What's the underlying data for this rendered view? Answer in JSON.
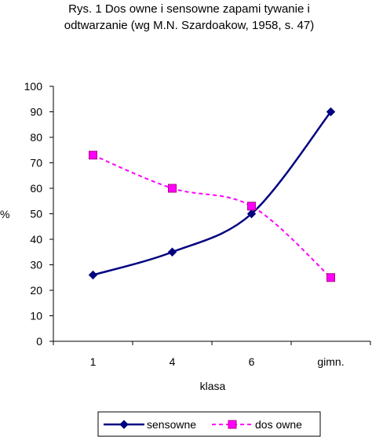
{
  "chart_data": {
    "type": "line",
    "title_lines": [
      "Rys. 1 Dos owne i sensowne zapami tywanie i",
      "odtwarzanie (wg M.N. Szardoakow, 1958, s. 47)"
    ],
    "xlabel": "klasa",
    "ylabel": "%",
    "categories": [
      "1",
      "4",
      "6",
      "gimn."
    ],
    "ylim": [
      0,
      100
    ],
    "yticks": [
      0,
      10,
      20,
      30,
      40,
      50,
      60,
      70,
      80,
      90,
      100
    ],
    "grid": false,
    "legend_position": "bottom",
    "series": [
      {
        "name": "sensowne",
        "values": [
          26,
          35,
          50,
          90
        ],
        "color": "#000080",
        "line_style": "solid",
        "marker": "diamond",
        "smooth": true
      },
      {
        "name": "dos owne",
        "values": [
          73,
          60,
          53,
          25
        ],
        "color": "#ff00ff",
        "line_style": "dashed",
        "marker": "square",
        "smooth": true
      }
    ]
  }
}
